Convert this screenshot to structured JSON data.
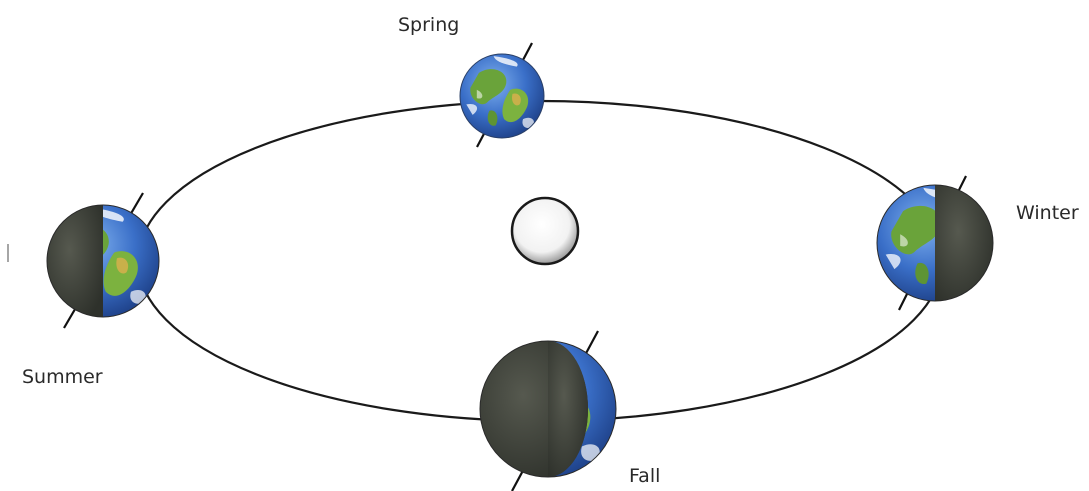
{
  "labels": {
    "spring": "Spring",
    "summer": "Summer",
    "winter": "Winter",
    "fall": "Fall"
  },
  "colors": {
    "orbit": "#1a1a1a",
    "ocean": "#3a6fc8",
    "land": "#6aa33a",
    "desert": "#c9b04a",
    "night_side": "#3c4038",
    "sun_fill": "#ffffff"
  },
  "icons": {
    "sun": "sun-icon",
    "earth": "earth-icon"
  }
}
